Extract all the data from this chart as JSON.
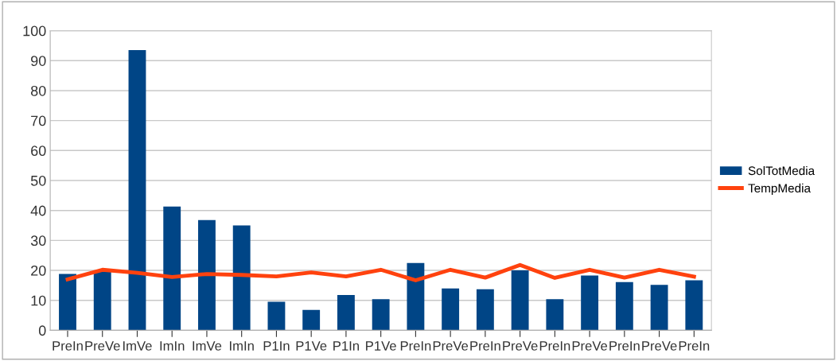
{
  "chart_data": {
    "type": "bar",
    "categories": [
      "PreIn",
      "PreVe",
      "ImVe",
      "ImIn",
      "ImVe",
      "ImIn",
      "P1In",
      "P1Ve",
      "P1In",
      "P1Ve",
      "PreIn",
      "PreVe",
      "PreIn",
      "PreVe",
      "PreIn",
      "PreVe",
      "PreIn",
      "PreVe",
      "PreIn"
    ],
    "series": [
      {
        "name": "SolTotMedia",
        "color": "#004586",
        "values": [
          18.8,
          20,
          93.5,
          41.3,
          36.8,
          35,
          9.5,
          6.8,
          11.8,
          10.4,
          22.5,
          14,
          13.7,
          20,
          10.4,
          18.3,
          16.1,
          15.2,
          16.7
        ]
      },
      {
        "name": "TempMedia",
        "type": "line",
        "color": "#ff420e",
        "values": [
          17,
          20.2,
          19.2,
          17.8,
          18.8,
          18.5,
          18,
          19.3,
          18,
          20.2,
          16.7,
          20.2,
          17.6,
          21.8,
          17.5,
          20.2,
          17.6,
          20.2,
          17.9
        ]
      }
    ],
    "ylim": [
      0,
      100
    ],
    "yticks": [
      0,
      10,
      20,
      30,
      40,
      50,
      60,
      70,
      80,
      90,
      100
    ],
    "grid": "y",
    "legend": "right",
    "marker": "none",
    "line_style": "solid"
  }
}
